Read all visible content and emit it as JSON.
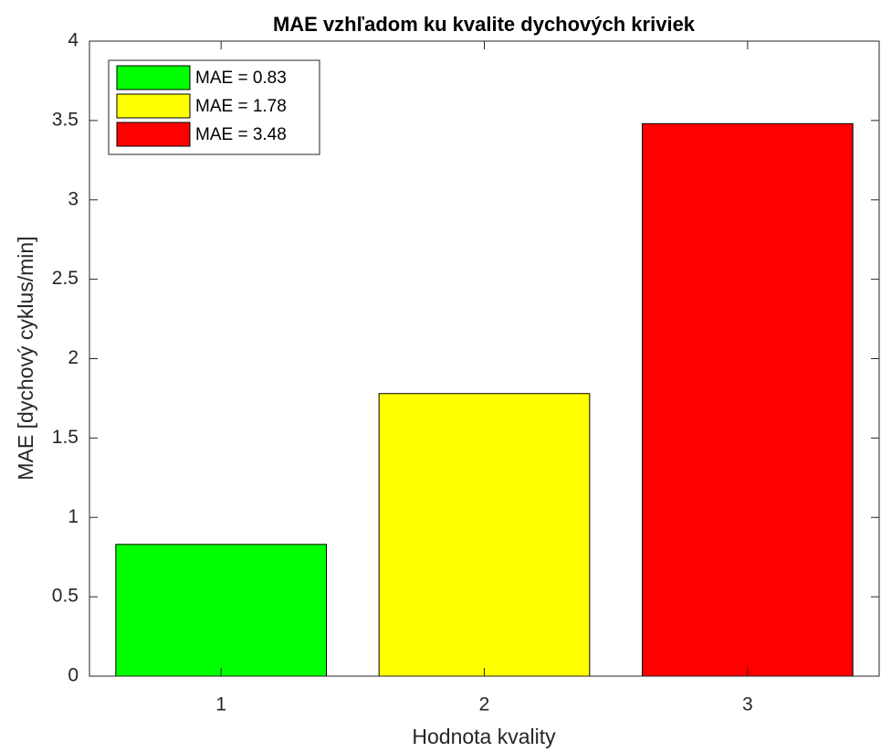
{
  "chart_data": {
    "type": "bar",
    "title": "MAE vzhľadom ku kvalite dychových kriviek",
    "x_label": "Hodnota kvality",
    "y_label": "MAE [dychový cyklus/min]",
    "x": [
      1,
      2,
      3
    ],
    "series": [
      {
        "name": "MAE = 0.83",
        "color": "#00ff00",
        "values": [
          0.83,
          null,
          null
        ]
      },
      {
        "name": "MAE = 1.78",
        "color": "#ffff00",
        "values": [
          null,
          1.78,
          null
        ]
      },
      {
        "name": "MAE = 3.48",
        "color": "#ff0000",
        "values": [
          null,
          null,
          3.48
        ]
      }
    ],
    "xlim": [
      0.5,
      3.5
    ],
    "xticks": [
      1,
      2,
      3
    ],
    "ylim": [
      0,
      4
    ],
    "yticks": [
      0,
      0.5,
      1,
      1.5,
      2,
      2.5,
      3,
      3.5,
      4
    ],
    "grid": false,
    "legend": "top-left"
  }
}
